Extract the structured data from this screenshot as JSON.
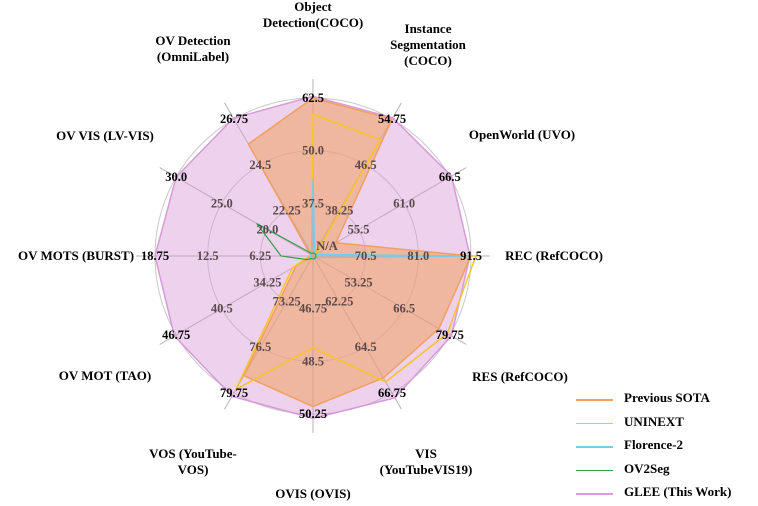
{
  "chart_data": {
    "type": "radar",
    "axes": [
      {
        "name": "Object\nDetection(COCO)",
        "ticks": [
          "37.5",
          "50.0",
          "62.5"
        ],
        "min": 25.0,
        "max": 62.5
      },
      {
        "name": "Instance\nSegmentation\n(COCO)",
        "ticks": [
          "38.25",
          "46.5",
          "54.75"
        ],
        "min": 30.0,
        "max": 54.75
      },
      {
        "name": "OpenWorld (UVO)",
        "ticks": [
          "55.5",
          "61.0",
          "66.5"
        ],
        "min": 50.0,
        "max": 66.5
      },
      {
        "name": "REC (RefCOCO)",
        "ticks": [
          "70.5",
          "81.0",
          "91.5"
        ],
        "min": 60.0,
        "max": 91.5
      },
      {
        "name": "RES (RefCOCO)",
        "ticks": [
          "53.25",
          "66.5",
          "79.75"
        ],
        "min": 40.0,
        "max": 79.75
      },
      {
        "name": "VIS\n(YouTubeVIS19)",
        "ticks": [
          "62.25",
          "64.5",
          "66.75"
        ],
        "min": 60.0,
        "max": 66.75
      },
      {
        "name": "OVIS (OVIS)",
        "ticks": [
          "46.75",
          "48.5",
          "50.25"
        ],
        "min": 45.0,
        "max": 50.25
      },
      {
        "name": "VOS (YouTube-\nVOS)",
        "ticks": [
          "73.25",
          "76.5",
          "79.75"
        ],
        "min": 70.0,
        "max": 79.75
      },
      {
        "name": "OV MOT (TAO)",
        "ticks": [
          "34.25",
          "40.5",
          "46.75"
        ],
        "min": 28.0,
        "max": 46.75
      },
      {
        "name": "OV MOTS (BURST)",
        "ticks": [
          "6.25",
          "12.5",
          "18.75"
        ],
        "min": 0.0,
        "max": 18.75
      },
      {
        "name": "OV VIS (LV-VIS)",
        "ticks": [
          "20.0",
          "25.0",
          "30.0"
        ],
        "min": 15.0,
        "max": 30.0
      },
      {
        "name": "OV Detection\n(OmniLabel)",
        "ticks": [
          "22.25",
          "24.5",
          "26.75"
        ],
        "min": 20.0,
        "max": 26.75
      }
    ],
    "na_label": "N/A",
    "series": [
      {
        "name": "Previous SOTA",
        "color": "#f0a060",
        "fill": true,
        "values": [
          62.5,
          54.75,
          52.5,
          91.5,
          76.5,
          66.0,
          50.0,
          78.5,
          30.0,
          0.0,
          15.0,
          25.5
        ]
      },
      {
        "name": "UNINEXT",
        "color": "#f7c528",
        "fill": false,
        "values": [
          58.5,
          51.0,
          40.0,
          92.5,
          79.0,
          66.2,
          48.0,
          79.5,
          30.5,
          0.0,
          15.0,
          20.0
        ]
      },
      {
        "name": "Florence-2",
        "color": "#7ec8e8",
        "fill": false,
        "values": [
          43.0,
          30.0,
          50.0,
          91.0,
          40.0,
          60.0,
          45.0,
          70.0,
          28.0,
          0.0,
          15.0,
          20.0
        ]
      },
      {
        "name": "OV2Seg",
        "color": "#3a9c4a",
        "fill": false,
        "values": [
          25.0,
          30.0,
          50.0,
          60.0,
          40.0,
          60.0,
          45.0,
          70.0,
          28.5,
          3.5,
          21.0,
          20.0
        ]
      },
      {
        "name": "GLEE (This Work)",
        "color": "#d89ad8",
        "fill": true,
        "values": [
          62.9,
          55.0,
          66.7,
          91.3,
          80.2,
          67.0,
          50.4,
          80.0,
          47.0,
          18.75,
          30.0,
          26.8
        ]
      }
    ],
    "legend_position": "bottom-right"
  }
}
